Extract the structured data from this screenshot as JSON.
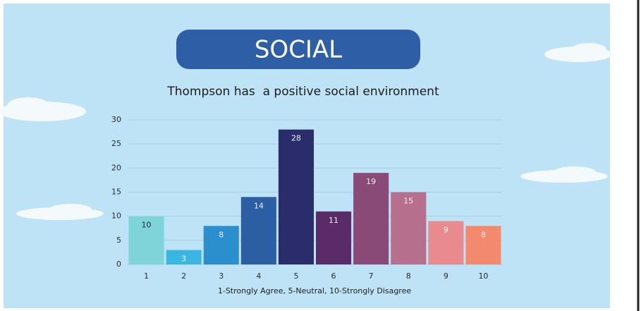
{
  "header": {
    "title": "SOCIAL"
  },
  "chart_data": {
    "type": "bar",
    "title": "Thompson has  a positive social environment",
    "x_label": "1-Strongly Agree, 5-Neutral, 10-Strongly Disagree",
    "categories": [
      "1",
      "2",
      "3",
      "4",
      "5",
      "6",
      "7",
      "8",
      "9",
      "10"
    ],
    "values": [
      10,
      3,
      8,
      14,
      28,
      11,
      19,
      15,
      9,
      8
    ],
    "colors": [
      "#7fd4da",
      "#3ab6e2",
      "#2a8fcc",
      "#2c5ea3",
      "#2a2c6c",
      "#5a2b68",
      "#8a4a78",
      "#b66f8c",
      "#e98a8e",
      "#f38a6e"
    ],
    "ylim": [
      0,
      30
    ],
    "yticks": [
      0,
      5,
      10,
      15,
      20,
      25,
      30
    ],
    "grid": true
  }
}
